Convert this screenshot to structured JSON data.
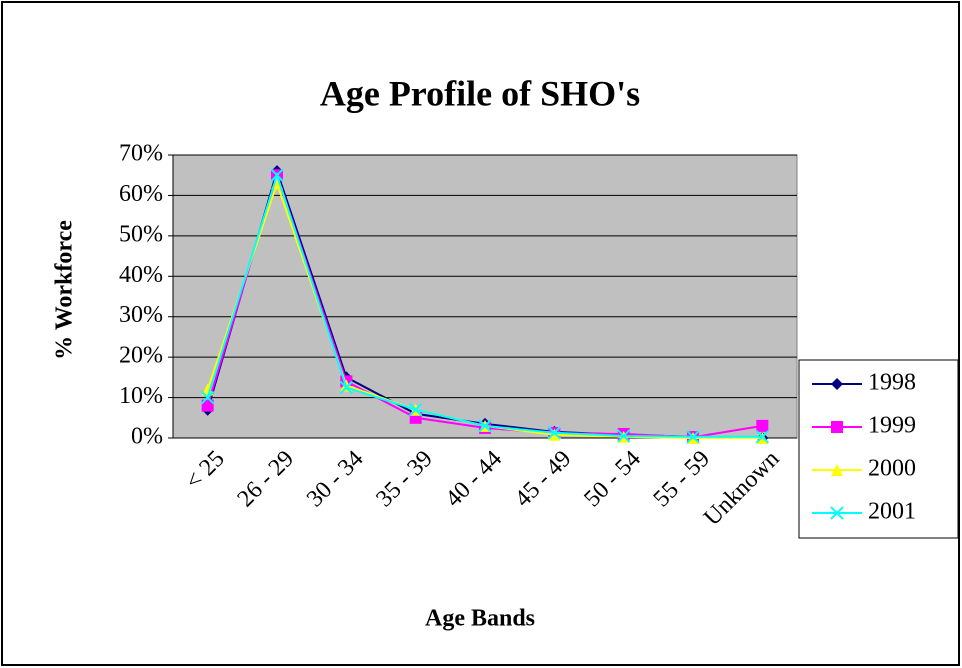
{
  "chart_data": {
    "type": "line",
    "title": "Age Profile of SHO's",
    "x_label": "Age Bands",
    "y_label": "% Workforce",
    "categories": [
      "< 25",
      "26 - 29",
      "30 - 34",
      "35 - 39",
      "40 - 44",
      "45 - 49",
      "50 - 54",
      "55 - 59",
      "Unknown"
    ],
    "series": [
      {
        "name": "1998",
        "color": "#000080",
        "marker": "diamond",
        "values": [
          7,
          66,
          15,
          6,
          3.5,
          1.5,
          0.8,
          0.3,
          0
        ]
      },
      {
        "name": "1999",
        "color": "#ff00ff",
        "marker": "square",
        "values": [
          8,
          65,
          14,
          5,
          2.5,
          1.2,
          1,
          0.2,
          3
        ]
      },
      {
        "name": "2000",
        "color": "#ffff00",
        "marker": "triangle",
        "values": [
          12,
          63,
          13,
          7,
          3,
          0.8,
          0.3,
          0,
          0
        ]
      },
      {
        "name": "2001",
        "color": "#00ffff",
        "marker": "x",
        "values": [
          10,
          65,
          12.5,
          7,
          3,
          1.3,
          0.5,
          0.3,
          0.3
        ]
      }
    ],
    "ylim": [
      0,
      70
    ],
    "yticks": [
      {
        "value": 0,
        "label": "0%"
      },
      {
        "value": 10,
        "label": "10%"
      },
      {
        "value": 20,
        "label": "20%"
      },
      {
        "value": 30,
        "label": "30%"
      },
      {
        "value": 40,
        "label": "40%"
      },
      {
        "value": 50,
        "label": "50%"
      },
      {
        "value": 60,
        "label": "60%"
      },
      {
        "value": 70,
        "label": "70%"
      }
    ],
    "grid": true,
    "legend": "right"
  }
}
